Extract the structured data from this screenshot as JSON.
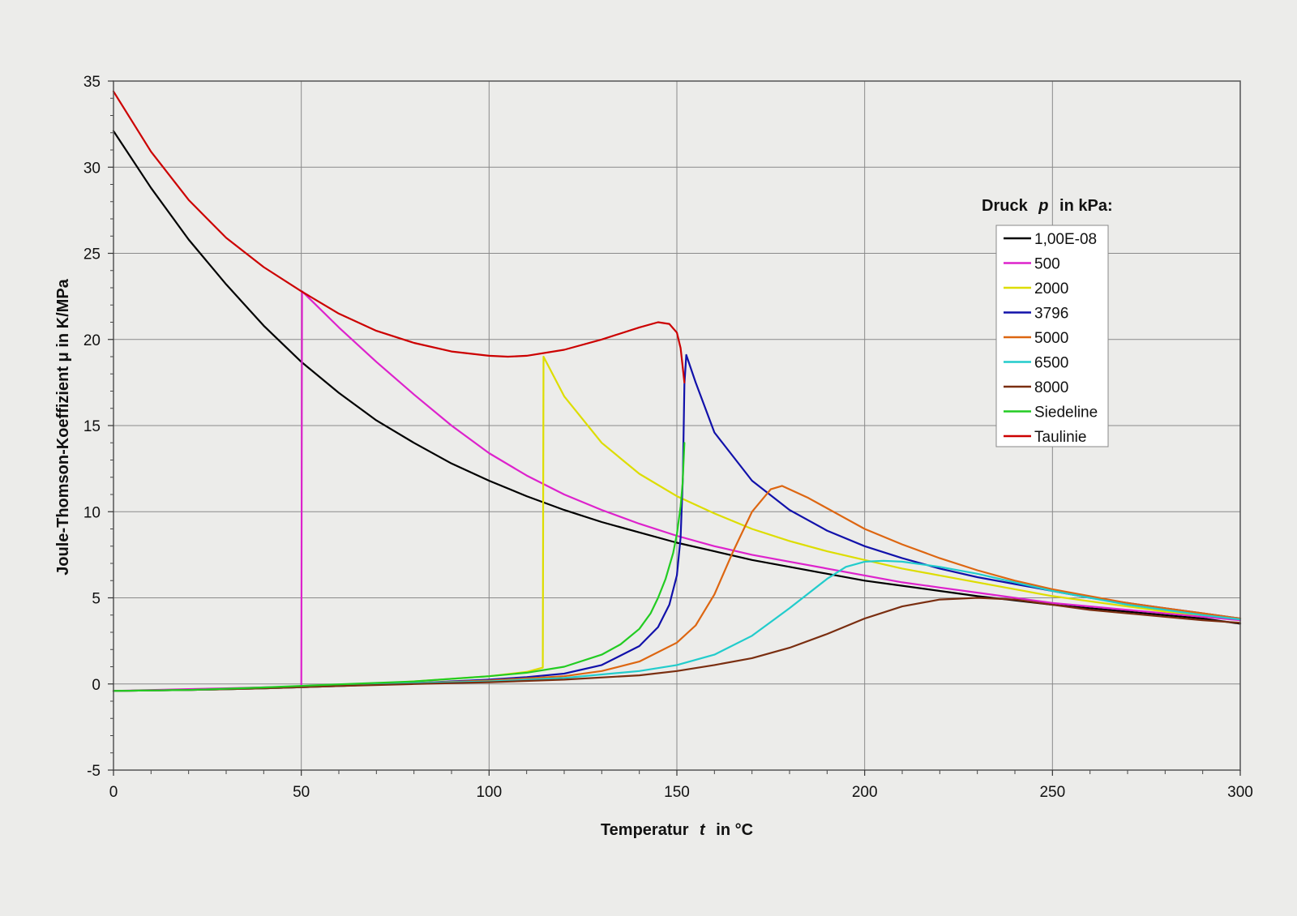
{
  "chart_data": {
    "type": "line",
    "xlabel": "Temperatur",
    "xlabel_var": "t",
    "xlabel_unit": "in °C",
    "ylabel": "Joule-Thomson-Koeffizient μ in K/MPa",
    "xlim": [
      0,
      300
    ],
    "ylim": [
      -5,
      35
    ],
    "xticks": [
      0,
      50,
      100,
      150,
      200,
      250,
      300
    ],
    "yticks": [
      -5,
      0,
      5,
      10,
      15,
      20,
      25,
      30,
      35
    ],
    "grid": true,
    "legend_title": "Druck",
    "legend_title_var": "p",
    "legend_title_unit": "in kPa:",
    "legend_position": "right",
    "series": [
      {
        "name": "1,00E-08",
        "color": "#000000",
        "x": [
          0,
          10,
          20,
          30,
          40,
          50,
          60,
          70,
          80,
          90,
          100,
          110,
          120,
          130,
          140,
          150,
          160,
          170,
          180,
          190,
          200,
          210,
          220,
          230,
          240,
          250,
          260,
          270,
          280,
          290,
          300
        ],
        "y": [
          32.1,
          28.8,
          25.8,
          23.2,
          20.8,
          18.7,
          16.9,
          15.3,
          14.0,
          12.8,
          11.8,
          10.9,
          10.1,
          9.4,
          8.8,
          8.2,
          7.7,
          7.2,
          6.8,
          6.4,
          6.0,
          5.7,
          5.4,
          5.1,
          4.85,
          4.6,
          4.4,
          4.2,
          4.0,
          3.8,
          3.5
        ]
      },
      {
        "name": "500",
        "color": "#dd22cc",
        "x": [
          0,
          10,
          20,
          30,
          40,
          50,
          50.2,
          60,
          70,
          80,
          90,
          100,
          110,
          120,
          130,
          140,
          150,
          160,
          170,
          180,
          190,
          200,
          210,
          220,
          230,
          240,
          250,
          260,
          270,
          280,
          290,
          300
        ],
        "y": [
          -0.4,
          -0.35,
          -0.3,
          -0.25,
          -0.2,
          -0.15,
          22.8,
          20.7,
          18.7,
          16.8,
          15.0,
          13.4,
          12.1,
          11.0,
          10.1,
          9.3,
          8.6,
          8.0,
          7.5,
          7.1,
          6.7,
          6.3,
          5.9,
          5.6,
          5.3,
          5.0,
          4.7,
          4.5,
          4.3,
          4.1,
          3.9,
          3.7
        ]
      },
      {
        "name": "2000",
        "color": "#dddd00",
        "x": [
          0,
          20,
          40,
          60,
          80,
          100,
          110,
          114.3,
          114.5,
          120,
          130,
          140,
          150,
          160,
          170,
          180,
          190,
          200,
          210,
          220,
          230,
          240,
          250,
          260,
          270,
          280,
          290,
          300
        ],
        "y": [
          -0.4,
          -0.35,
          -0.25,
          -0.1,
          0.15,
          0.45,
          0.7,
          0.95,
          19.0,
          16.7,
          14.0,
          12.2,
          10.9,
          9.9,
          9.0,
          8.3,
          7.7,
          7.2,
          6.7,
          6.3,
          5.9,
          5.5,
          5.1,
          4.8,
          4.5,
          4.2,
          4.0,
          3.8
        ]
      },
      {
        "name": "3796",
        "color": "#1111aa",
        "x": [
          0,
          20,
          40,
          60,
          80,
          100,
          110,
          120,
          130,
          140,
          145,
          148,
          150,
          151,
          151.6,
          152,
          152.5,
          155,
          160,
          170,
          180,
          190,
          200,
          210,
          220,
          230,
          240,
          250,
          260,
          270,
          280,
          290,
          300
        ],
        "y": [
          -0.4,
          -0.35,
          -0.25,
          -0.12,
          0.05,
          0.25,
          0.4,
          0.6,
          1.1,
          2.2,
          3.3,
          4.6,
          6.3,
          8.5,
          12.0,
          17.4,
          19.1,
          17.5,
          14.6,
          11.8,
          10.1,
          8.9,
          8.0,
          7.3,
          6.7,
          6.2,
          5.8,
          5.4,
          5.0,
          4.7,
          4.4,
          4.1,
          3.8
        ]
      },
      {
        "name": "5000",
        "color": "#dd6611",
        "x": [
          0,
          20,
          40,
          60,
          80,
          100,
          120,
          130,
          140,
          150,
          155,
          160,
          165,
          170,
          175,
          178,
          180,
          185,
          190,
          200,
          210,
          220,
          230,
          240,
          250,
          260,
          270,
          280,
          290,
          300
        ],
        "y": [
          -0.4,
          -0.35,
          -0.25,
          -0.12,
          0.05,
          0.2,
          0.45,
          0.75,
          1.3,
          2.4,
          3.4,
          5.2,
          7.7,
          10.0,
          11.3,
          11.5,
          11.3,
          10.8,
          10.2,
          9.0,
          8.1,
          7.3,
          6.6,
          6.0,
          5.5,
          5.1,
          4.7,
          4.4,
          4.1,
          3.8
        ]
      },
      {
        "name": "6500",
        "color": "#22cccc",
        "x": [
          0,
          20,
          40,
          60,
          80,
          100,
          120,
          140,
          150,
          160,
          170,
          180,
          190,
          195,
          200,
          205,
          210,
          220,
          230,
          240,
          250,
          260,
          270,
          280,
          290,
          300
        ],
        "y": [
          -0.4,
          -0.35,
          -0.25,
          -0.12,
          0.05,
          0.15,
          0.35,
          0.75,
          1.1,
          1.7,
          2.8,
          4.4,
          6.1,
          6.8,
          7.1,
          7.15,
          7.1,
          6.8,
          6.4,
          5.9,
          5.4,
          5.0,
          4.6,
          4.3,
          4.0,
          3.75
        ]
      },
      {
        "name": "8000",
        "color": "#7a2e10",
        "x": [
          0,
          20,
          40,
          60,
          80,
          100,
          120,
          140,
          150,
          160,
          170,
          180,
          190,
          200,
          210,
          220,
          230,
          240,
          250,
          260,
          270,
          280,
          290,
          300
        ],
        "y": [
          -0.4,
          -0.35,
          -0.25,
          -0.12,
          0.0,
          0.1,
          0.25,
          0.5,
          0.75,
          1.1,
          1.5,
          2.1,
          2.9,
          3.8,
          4.5,
          4.9,
          5.0,
          4.9,
          4.6,
          4.3,
          4.1,
          3.9,
          3.7,
          3.55
        ]
      },
      {
        "name": "Siedeline",
        "color": "#22cc22",
        "x": [
          0,
          20,
          40,
          60,
          80,
          100,
          110,
          120,
          130,
          135,
          140,
          143,
          145,
          147,
          149,
          150,
          151,
          151.5,
          152
        ],
        "y": [
          -0.4,
          -0.35,
          -0.2,
          -0.02,
          0.15,
          0.45,
          0.65,
          1.0,
          1.7,
          2.3,
          3.2,
          4.1,
          5.0,
          6.1,
          7.6,
          8.7,
          10.3,
          11.6,
          14.0
        ]
      },
      {
        "name": "Taulinie",
        "color": "#cc0000",
        "x": [
          0,
          10,
          20,
          30,
          40,
          50,
          60,
          70,
          80,
          90,
          100,
          105,
          110,
          120,
          130,
          140,
          145,
          148,
          150,
          151,
          152
        ],
        "y": [
          34.4,
          30.9,
          28.1,
          25.9,
          24.2,
          22.8,
          21.5,
          20.5,
          19.8,
          19.3,
          19.05,
          19.0,
          19.05,
          19.4,
          20.0,
          20.7,
          21.0,
          20.9,
          20.4,
          19.5,
          17.5
        ]
      }
    ]
  }
}
